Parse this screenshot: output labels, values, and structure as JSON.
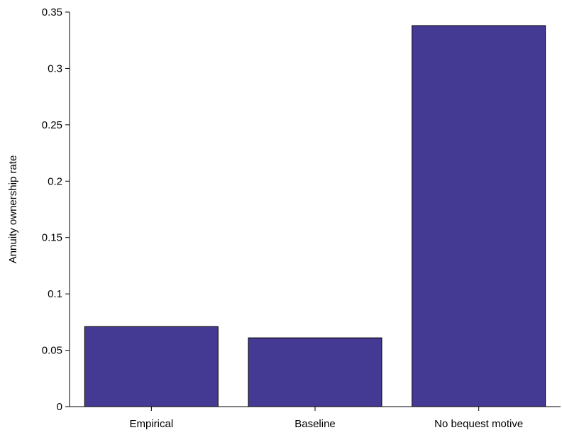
{
  "chart_data": {
    "type": "bar",
    "title": "",
    "xlabel": "",
    "ylabel": "Annuity ownership rate",
    "categories": [
      "Empirical",
      "Baseline",
      "No bequest motive"
    ],
    "values": [
      0.071,
      0.061,
      0.338
    ],
    "ylim": [
      0,
      0.35
    ],
    "yticks": [
      "0",
      "0.05",
      "0.1",
      "0.15",
      "0.2",
      "0.25",
      "0.3",
      "0.35"
    ],
    "grid": false,
    "legend": "none",
    "bar_color": "#443993",
    "bar_edge_color": "#000000"
  }
}
